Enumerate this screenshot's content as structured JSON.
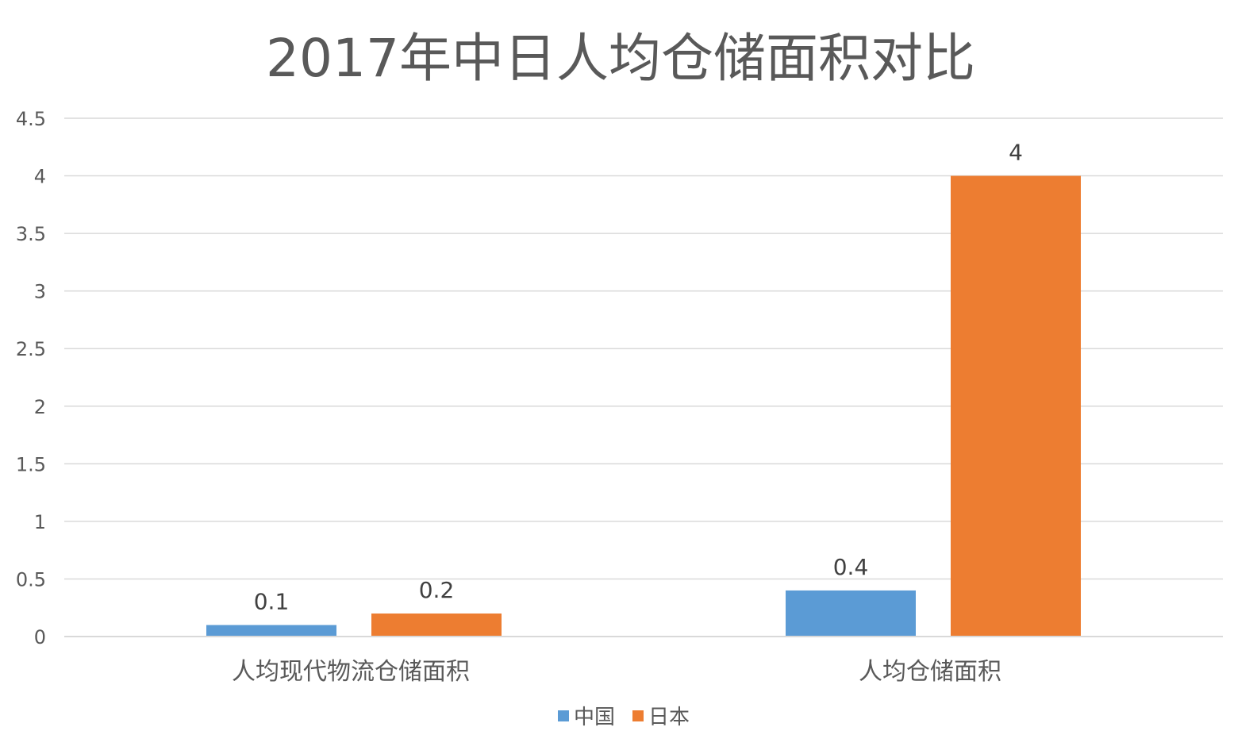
{
  "chart_data": {
    "type": "bar",
    "title": "2017年中日人均仓储面积对比",
    "categories": [
      "人均现代物流仓储面积",
      "人均仓储面积"
    ],
    "series": [
      {
        "name": "中国",
        "values": [
          0.1,
          0.4
        ],
        "color": "#5B9BD5",
        "labels": [
          "0.1",
          "0.4"
        ]
      },
      {
        "name": "日本",
        "values": [
          0.2,
          4
        ],
        "color": "#ED7D31",
        "labels": [
          "0.2",
          "4"
        ]
      }
    ],
    "ylim": [
      0,
      4.5
    ],
    "yticks": [
      {
        "value": 0,
        "label": "0"
      },
      {
        "value": 0.5,
        "label": "0.5"
      },
      {
        "value": 1,
        "label": "1"
      },
      {
        "value": 1.5,
        "label": "1.5"
      },
      {
        "value": 2,
        "label": "2"
      },
      {
        "value": 2.5,
        "label": "2.5"
      },
      {
        "value": 3,
        "label": "3"
      },
      {
        "value": 3.5,
        "label": "3.5"
      },
      {
        "value": 4,
        "label": "4"
      },
      {
        "value": 4.5,
        "label": "4.5"
      }
    ],
    "xlabel": "",
    "ylabel": "",
    "grid": true,
    "legend_position": "bottom"
  }
}
